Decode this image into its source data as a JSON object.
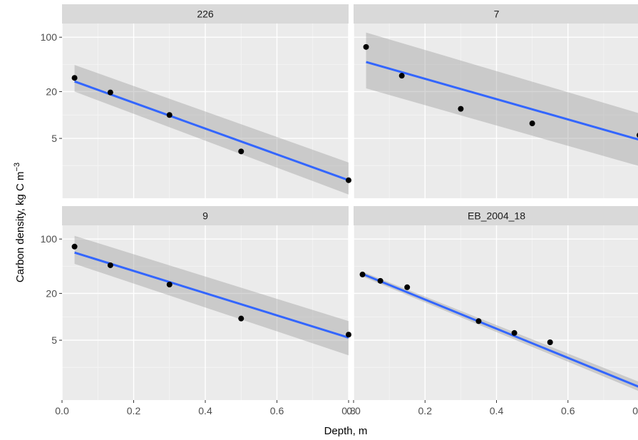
{
  "chart_data": {
    "type": "scatter",
    "layout": "facet-2x2",
    "xlabel": "Depth, m",
    "ylabel": "Carbon density, kg C m",
    "ylabel_superscript": "−3",
    "y_scale": "log10",
    "xlim": [
      0,
      0.8
    ],
    "ylim": [
      0.85,
      150
    ],
    "x_ticks": [
      0.0,
      0.2,
      0.4,
      0.6,
      0.8
    ],
    "x_tick_labels": [
      "0.0",
      "0.2",
      "0.4",
      "0.6",
      "0.8"
    ],
    "y_ticks": [
      5,
      20,
      100
    ],
    "y_tick_labels": [
      "5",
      "20",
      "100"
    ],
    "grid": true,
    "colors": {
      "panel_bg": "#ebebeb",
      "strip_bg": "#d9d9d9",
      "grid_major": "#ffffff",
      "fit_line": "#3366ff",
      "ribbon": "#999999",
      "points": "#000000"
    },
    "panels": [
      {
        "strip": "226",
        "x": [
          0.035,
          0.135,
          0.3,
          0.5,
          0.8
        ],
        "y": [
          30,
          19.5,
          10,
          3.4,
          1.45
        ],
        "fit": {
          "x": [
            0.035,
            0.8
          ],
          "y": [
            27,
            1.45
          ]
        },
        "ribbon_lower": [
          20,
          0.95
        ],
        "ribbon_upper": [
          44,
          2.45
        ]
      },
      {
        "strip": "7",
        "x": [
          0.035,
          0.135,
          0.3,
          0.5,
          0.8
        ],
        "y": [
          75,
          32,
          12,
          7.8,
          5.5
        ],
        "fit": {
          "x": [
            0.035,
            0.8
          ],
          "y": [
            48,
            4.8
          ]
        },
        "ribbon_lower": [
          22,
          2.2
        ],
        "ribbon_upper": [
          115,
          10.5
        ]
      },
      {
        "strip": "9",
        "x": [
          0.035,
          0.135,
          0.3,
          0.5,
          0.8
        ],
        "y": [
          80,
          46,
          26,
          9.5,
          5.9
        ],
        "fit": {
          "x": [
            0.035,
            0.8
          ],
          "y": [
            67,
            5.4
          ]
        },
        "ribbon_lower": [
          48,
          3.2
        ],
        "ribbon_upper": [
          110,
          8.8
        ]
      },
      {
        "strip": "EB_2004_18",
        "x": [
          0.025,
          0.075,
          0.15,
          0.35,
          0.45,
          0.55
        ],
        "y": [
          35,
          29,
          24,
          8.8,
          6.2,
          4.7
        ],
        "fit": {
          "x": [
            0.025,
            0.8
          ],
          "y": [
            35.5,
            1.25
          ]
        },
        "ribbon_lower": [
          33,
          1.1
        ],
        "ribbon_upper": [
          38,
          1.45
        ]
      }
    ]
  }
}
